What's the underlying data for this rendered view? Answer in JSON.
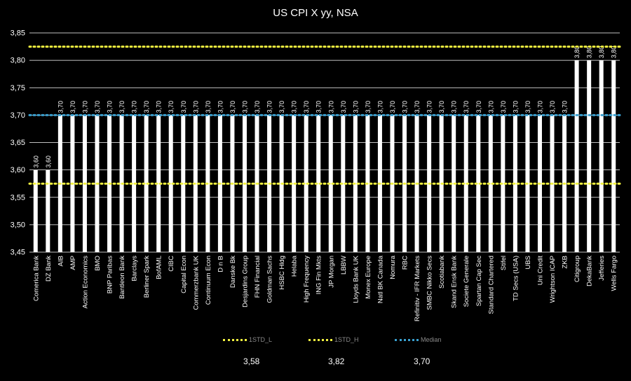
{
  "chart_data": {
    "type": "bar",
    "title": "US CPI X yy, NSA",
    "ylim": [
      3.45,
      3.85
    ],
    "yticks": [
      "3,45",
      "3,50",
      "3,55",
      "3,60",
      "3,65",
      "3,70",
      "3,75",
      "3,80",
      "3,85"
    ],
    "categories": [
      "Comerica Bank",
      "DZ Bank",
      "AIB",
      "AMP",
      "Action Economics",
      "BMO",
      "BNP Paribas",
      "Bantleon Bank",
      "Barclays",
      "Berliner Spark",
      "BofAML",
      "CIBC",
      "Capital Econ",
      "Commerzbank UK",
      "Continuum Econ",
      "D n B",
      "Danske Bk",
      "Desjardins Group",
      "FHN Financial",
      "Goldman Sachs",
      "HSBC Hldg",
      "Helaba",
      "High Frequency",
      "ING Fin Mkts",
      "JP Morgan",
      "LBBW",
      "Lloyds Bank UK",
      "Monex Europe",
      "Natl BK Canada",
      "Nomura",
      "RBC",
      "Refinitiv - IFR Markets",
      "SMBC Nikko Secs",
      "Scotiabank",
      "Skand Ensk Bank",
      "Societe Generale",
      "Spartan Cap Sec",
      "Standard Chartered",
      "Stifel",
      "TD Secs (USA)",
      "UBS",
      "Uni Credit",
      "Wrightson ICAP",
      "ZKB",
      "Citigroup",
      "DekaBank",
      "Jefferies",
      "Wells Fargo"
    ],
    "values": [
      3.6,
      3.6,
      3.7,
      3.7,
      3.7,
      3.7,
      3.7,
      3.7,
      3.7,
      3.7,
      3.7,
      3.7,
      3.7,
      3.7,
      3.7,
      3.7,
      3.7,
      3.7,
      3.7,
      3.7,
      3.7,
      3.7,
      3.7,
      3.7,
      3.7,
      3.7,
      3.7,
      3.7,
      3.7,
      3.7,
      3.7,
      3.7,
      3.7,
      3.7,
      3.7,
      3.7,
      3.7,
      3.7,
      3.7,
      3.7,
      3.7,
      3.7,
      3.7,
      3.7,
      3.8,
      3.8,
      3.8,
      3.8
    ],
    "value_labels": [
      "3,60",
      "3,60",
      "3,70",
      "3,70",
      "3,70",
      "3,70",
      "3,70",
      "3,70",
      "3,70",
      "3,70",
      "3,70",
      "3,70",
      "3,70",
      "3,70",
      "3,70",
      "3,70",
      "3,70",
      "3,70",
      "3,70",
      "3,70",
      "3,70",
      "3,70",
      "3,70",
      "3,70",
      "3,70",
      "3,70",
      "3,70",
      "3,70",
      "3,70",
      "3,70",
      "3,70",
      "3,70",
      "3,70",
      "3,70",
      "3,70",
      "3,70",
      "3,70",
      "3,70",
      "3,70",
      "3,70",
      "3,70",
      "3,70",
      "3,70",
      "3,70",
      "3,80",
      "3,80",
      "3,80",
      "3,80"
    ],
    "lines": [
      {
        "name": "1STD_L",
        "value": 3.575,
        "label": "3,58",
        "color": "#f2f240"
      },
      {
        "name": "1STD_H",
        "value": 3.825,
        "label": "3,82",
        "color": "#f2f240"
      },
      {
        "name": "Median",
        "value": 3.7,
        "label": "3,70",
        "color": "#3aa0d0"
      }
    ],
    "bar_color": "#ffffff",
    "grid_color": "#ffffff"
  }
}
